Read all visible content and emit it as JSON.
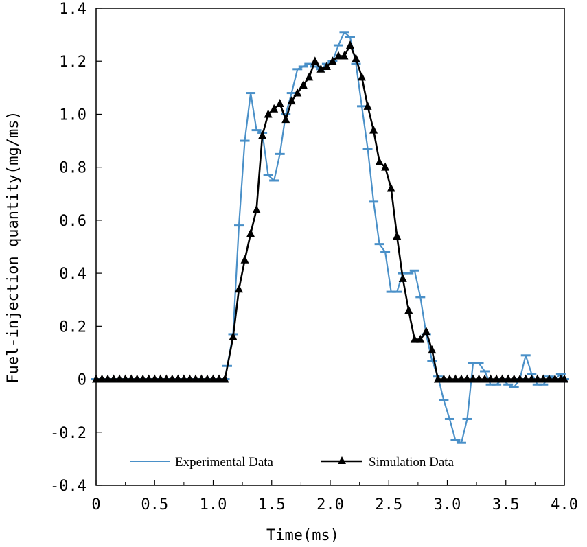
{
  "chart_data": {
    "type": "line",
    "title": "",
    "xlabel": "Time(ms)",
    "ylabel": "Fuel-injection quantity(mg/ms)",
    "xlim": [
      0,
      4.0
    ],
    "ylim": [
      -0.4,
      1.4
    ],
    "grid": false,
    "legend_position": "bottom-center",
    "x_ticks": [
      0,
      0.5,
      1.0,
      1.5,
      2.0,
      2.5,
      3.0,
      3.5,
      4.0
    ],
    "x_tick_labels": [
      "0",
      "0.5",
      "1.0",
      "1.5",
      "2.0",
      "2.5",
      "3.0",
      "3.5",
      "4.0"
    ],
    "y_ticks": [
      -0.4,
      -0.2,
      0,
      0.2,
      0.4,
      0.6,
      0.8,
      1.0,
      1.2,
      1.4
    ],
    "y_tick_labels": [
      "-0.4",
      "-0.2",
      "0",
      "0.2",
      "0.4",
      "0.6",
      "0.8",
      "1.0",
      "1.2",
      "1.4"
    ],
    "colors": {
      "experimental": "#4a90c8",
      "simulation": "#000000"
    },
    "series": [
      {
        "name": "Experimental Data",
        "marker": "dash",
        "x": [
          0,
          0.05,
          0.1,
          0.15,
          0.2,
          0.25,
          0.3,
          0.35,
          0.4,
          0.45,
          0.5,
          0.55,
          0.6,
          0.65,
          0.7,
          0.75,
          0.8,
          0.85,
          0.9,
          0.95,
          1.0,
          1.05,
          1.1,
          1.12,
          1.17,
          1.22,
          1.27,
          1.32,
          1.37,
          1.42,
          1.47,
          1.52,
          1.57,
          1.62,
          1.67,
          1.72,
          1.77,
          1.82,
          1.87,
          1.92,
          1.97,
          2.02,
          2.07,
          2.12,
          2.17,
          2.22,
          2.27,
          2.32,
          2.37,
          2.42,
          2.47,
          2.52,
          2.57,
          2.62,
          2.67,
          2.72,
          2.77,
          2.82,
          2.87,
          2.92,
          2.97,
          3.02,
          3.07,
          3.12,
          3.17,
          3.22,
          3.27,
          3.32,
          3.37,
          3.42,
          3.47,
          3.52,
          3.57,
          3.62,
          3.67,
          3.72,
          3.77,
          3.82,
          3.87,
          3.92,
          3.97,
          4.0
        ],
        "values": [
          0,
          0,
          0,
          0,
          0,
          0,
          0,
          0,
          0,
          0,
          0,
          0,
          0,
          0,
          0,
          0,
          0,
          0,
          0,
          0,
          0,
          0,
          0,
          0.05,
          0.17,
          0.58,
          0.9,
          1.08,
          0.94,
          0.93,
          0.77,
          0.75,
          0.85,
          1.0,
          1.08,
          1.17,
          1.18,
          1.19,
          1.18,
          1.17,
          1.19,
          1.2,
          1.26,
          1.31,
          1.29,
          1.19,
          1.03,
          0.87,
          0.67,
          0.51,
          0.48,
          0.33,
          0.33,
          0.4,
          0.4,
          0.41,
          0.31,
          0.17,
          0.07,
          0.01,
          -0.08,
          -0.15,
          -0.23,
          -0.24,
          -0.15,
          0.06,
          0.06,
          0.03,
          -0.02,
          -0.02,
          0.0,
          -0.02,
          -0.03,
          0.0,
          0.09,
          0.02,
          -0.02,
          -0.02,
          0.01,
          0.0,
          0.02,
          0.0
        ]
      },
      {
        "name": "Simulation Data",
        "marker": "triangle",
        "x": [
          0,
          0.05,
          0.1,
          0.15,
          0.2,
          0.25,
          0.3,
          0.35,
          0.4,
          0.45,
          0.5,
          0.55,
          0.6,
          0.65,
          0.7,
          0.75,
          0.8,
          0.85,
          0.9,
          0.95,
          1.0,
          1.05,
          1.1,
          1.17,
          1.22,
          1.27,
          1.32,
          1.37,
          1.42,
          1.47,
          1.52,
          1.57,
          1.62,
          1.67,
          1.72,
          1.77,
          1.82,
          1.87,
          1.92,
          1.97,
          2.02,
          2.07,
          2.12,
          2.17,
          2.22,
          2.27,
          2.32,
          2.37,
          2.42,
          2.47,
          2.52,
          2.57,
          2.62,
          2.67,
          2.72,
          2.77,
          2.82,
          2.87,
          2.92,
          2.97,
          3.02,
          3.07,
          3.12,
          3.17,
          3.22,
          3.27,
          3.32,
          3.37,
          3.42,
          3.47,
          3.52,
          3.57,
          3.62,
          3.67,
          3.72,
          3.77,
          3.82,
          3.87,
          3.92,
          3.97,
          4.0
        ],
        "values": [
          0,
          0,
          0,
          0,
          0,
          0,
          0,
          0,
          0,
          0,
          0,
          0,
          0,
          0,
          0,
          0,
          0,
          0,
          0,
          0,
          0,
          0,
          0,
          0.16,
          0.34,
          0.45,
          0.55,
          0.64,
          0.92,
          1.0,
          1.02,
          1.04,
          0.98,
          1.05,
          1.08,
          1.11,
          1.14,
          1.2,
          1.17,
          1.18,
          1.2,
          1.22,
          1.22,
          1.26,
          1.21,
          1.14,
          1.03,
          0.94,
          0.82,
          0.8,
          0.72,
          0.54,
          0.38,
          0.26,
          0.15,
          0.15,
          0.18,
          0.11,
          0.0,
          0.0,
          0.0,
          0.0,
          0.0,
          0.0,
          0.0,
          0.0,
          0.0,
          0.0,
          0.0,
          0.0,
          0.0,
          0.0,
          0.0,
          0.0,
          0.0,
          0.0,
          0.0,
          0.0,
          0.0,
          0.0,
          0.0
        ]
      }
    ]
  }
}
